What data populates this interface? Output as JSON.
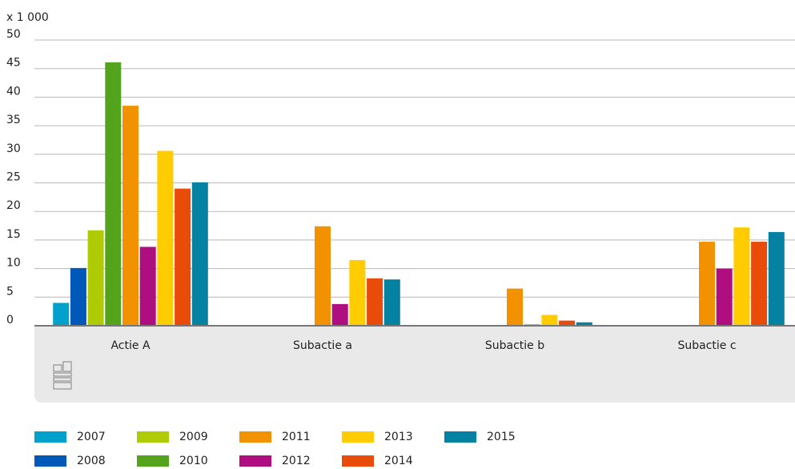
{
  "chart_data": {
    "type": "bar",
    "y_axis_label": "x 1 000",
    "categories": [
      "Actie A",
      "Subactie a",
      "Subactie b",
      "Subactie c"
    ],
    "series": [
      {
        "name": "2007",
        "color": "#00a1cd",
        "values": [
          4.0,
          null,
          null,
          null
        ]
      },
      {
        "name": "2008",
        "color": "#0058b8",
        "values": [
          10.1,
          null,
          null,
          null
        ]
      },
      {
        "name": "2009",
        "color": "#afcb05",
        "values": [
          16.7,
          null,
          null,
          null
        ]
      },
      {
        "name": "2010",
        "color": "#53a31d",
        "values": [
          46.1,
          null,
          null,
          null
        ]
      },
      {
        "name": "2011",
        "color": "#f39200",
        "values": [
          38.5,
          17.4,
          6.5,
          14.7
        ]
      },
      {
        "name": "2012",
        "color": "#af0e80",
        "values": [
          13.8,
          3.8,
          0.2,
          10.0
        ]
      },
      {
        "name": "2013",
        "color": "#ffcc00",
        "values": [
          30.6,
          11.5,
          1.9,
          17.2
        ]
      },
      {
        "name": "2014",
        "color": "#e94c0a",
        "values": [
          24.0,
          8.3,
          0.9,
          14.7
        ]
      },
      {
        "name": "2015",
        "color": "#0581a2",
        "values": [
          25.1,
          8.1,
          0.6,
          16.4
        ]
      }
    ],
    "ylim": [
      0,
      50
    ],
    "yticks": [
      0,
      5,
      10,
      15,
      20,
      25,
      30,
      35,
      40,
      45,
      50
    ],
    "grid": true
  }
}
